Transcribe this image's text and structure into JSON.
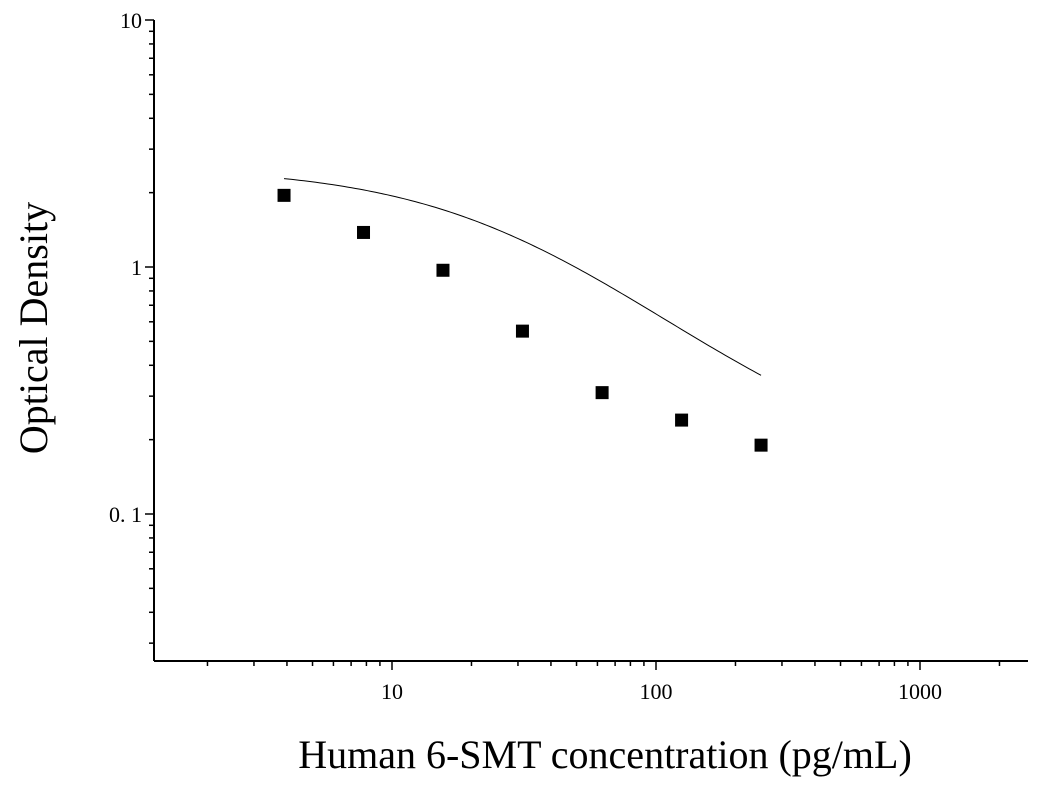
{
  "chart_data": {
    "type": "scatter",
    "title": "",
    "xlabel": "Human 6-SMT concentration (pg/mL)",
    "ylabel": "Optical Density",
    "x_scale": "log",
    "y_scale": "log",
    "xlim": [
      1,
      2500
    ],
    "ylim": [
      0.03,
      10
    ],
    "x_ticks": [
      {
        "value": 10,
        "label": "10"
      },
      {
        "value": 100,
        "label": "100"
      },
      {
        "value": 1000,
        "label": "1000"
      }
    ],
    "y_ticks": [
      {
        "value": 0.1,
        "label": "0. 1"
      },
      {
        "value": 1,
        "label": "1"
      },
      {
        "value": 10,
        "label": "10"
      }
    ],
    "grid": false,
    "legend": "none",
    "series": [
      {
        "marker": "square",
        "color": "#000000",
        "x": [
          3.9,
          7.8,
          15.6,
          31.2,
          62.5,
          125,
          250
        ],
        "y": [
          1.95,
          1.38,
          0.97,
          0.55,
          0.31,
          0.24,
          0.19
        ]
      }
    ],
    "fit_curve": {
      "model": "4PL",
      "color": "#000000",
      "x_range": [
        3.9,
        250
      ],
      "params": {
        "A": 2.55,
        "D": 0.145,
        "C": 28,
        "B": 1.05
      }
    }
  }
}
